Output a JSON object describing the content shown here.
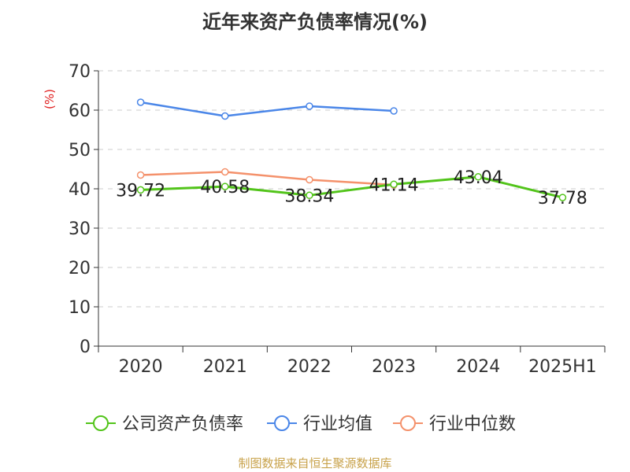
{
  "chart_data": {
    "type": "line",
    "title": "近年来资产负债率情况(%)",
    "ylabel": "(%)",
    "xlabel": "",
    "categories": [
      "2020",
      "2021",
      "2022",
      "2023",
      "2024",
      "2025H1"
    ],
    "ylim": [
      0,
      70
    ],
    "yticks": [
      0,
      10,
      20,
      30,
      40,
      50,
      60,
      70
    ],
    "grid": true,
    "legend_position": "bottom",
    "series": [
      {
        "name": "公司资产负债率",
        "color": "#52c41a",
        "values": [
          39.72,
          40.58,
          38.34,
          41.14,
          43.04,
          37.78
        ],
        "labels": [
          "39.72",
          "40.58",
          "38.34",
          "41.14",
          "43.04",
          "37.78"
        ]
      },
      {
        "name": "行业均值",
        "color": "#4a86e8",
        "values": [
          62.0,
          58.5,
          61.0,
          59.8,
          null,
          null
        ]
      },
      {
        "name": "行业中位数",
        "color": "#f4916b",
        "values": [
          43.5,
          44.3,
          42.3,
          41.0,
          null,
          null
        ]
      }
    ],
    "source": "制图数据来自恒生聚源数据库"
  }
}
